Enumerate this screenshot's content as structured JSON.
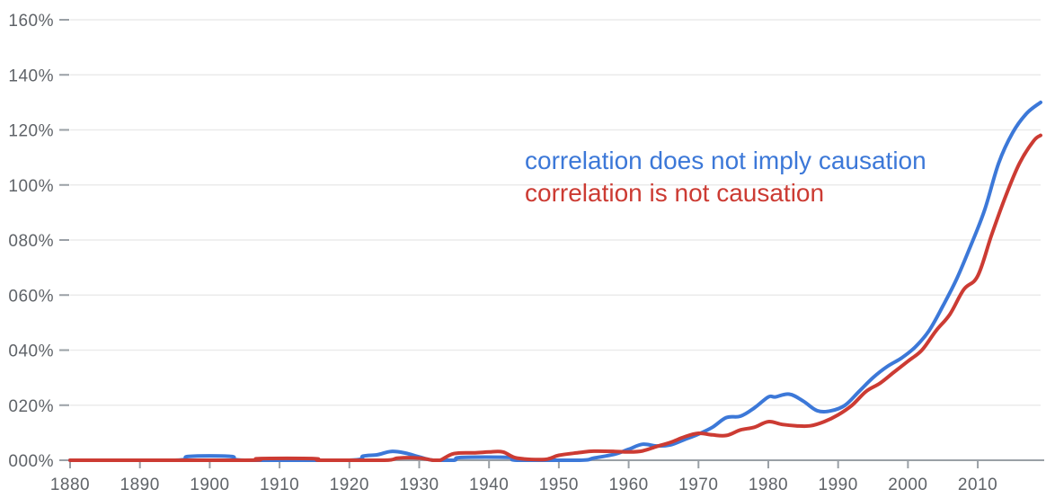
{
  "chart_data": {
    "type": "line",
    "title": "",
    "xlabel": "",
    "ylabel": "",
    "xlim": [
      1880,
      2019
    ],
    "ylim": [
      0,
      160
    ],
    "y_unit": "%",
    "grid": true,
    "legend_placement": "inside-right",
    "x_ticks": [
      1880,
      1890,
      1900,
      1910,
      1920,
      1930,
      1940,
      1950,
      1960,
      1970,
      1980,
      1990,
      2000,
      2010
    ],
    "y_tick_values": [
      0,
      20,
      40,
      60,
      80,
      100,
      120,
      140,
      160
    ],
    "y_tick_labels": [
      "000%",
      "020%",
      "040%",
      "060%",
      "080%",
      "100%",
      "120%",
      "140%",
      "160%"
    ],
    "colors": {
      "grid": "#ebebeb",
      "axis": "#9aa0a6",
      "tick_text": "#5f6368"
    },
    "series": [
      {
        "name": "correlation does not imply causation",
        "color": "#3c78d8",
        "points": [
          [
            1880,
            0
          ],
          [
            1895,
            0
          ],
          [
            1897,
            1.4
          ],
          [
            1903,
            1.4
          ],
          [
            1905,
            0
          ],
          [
            1920,
            0
          ],
          [
            1922,
            1.5
          ],
          [
            1924,
            2.0
          ],
          [
            1926,
            3.2
          ],
          [
            1928,
            2.6
          ],
          [
            1930,
            1.2
          ],
          [
            1932,
            0
          ],
          [
            1935,
            0
          ],
          [
            1936,
            1.0
          ],
          [
            1943,
            1.0
          ],
          [
            1944,
            0
          ],
          [
            1953,
            0
          ],
          [
            1955,
            0.8
          ],
          [
            1958,
            2.2
          ],
          [
            1960,
            4.0
          ],
          [
            1962,
            5.8
          ],
          [
            1964,
            5.2
          ],
          [
            1966,
            5.6
          ],
          [
            1968,
            7.5
          ],
          [
            1970,
            9.5
          ],
          [
            1972,
            12.0
          ],
          [
            1974,
            15.5
          ],
          [
            1976,
            16.0
          ],
          [
            1978,
            19.0
          ],
          [
            1980,
            23.0
          ],
          [
            1981,
            23.0
          ],
          [
            1983,
            24.0
          ],
          [
            1985,
            21.5
          ],
          [
            1987,
            18.0
          ],
          [
            1989,
            18.0
          ],
          [
            1991,
            20.0
          ],
          [
            1993,
            25.0
          ],
          [
            1995,
            30.0
          ],
          [
            1997,
            34.0
          ],
          [
            1999,
            37.0
          ],
          [
            2001,
            41.0
          ],
          [
            2003,
            47.0
          ],
          [
            2005,
            56.0
          ],
          [
            2007,
            66.0
          ],
          [
            2009,
            78.0
          ],
          [
            2011,
            91.0
          ],
          [
            2013,
            108.0
          ],
          [
            2015,
            119.0
          ],
          [
            2017,
            126.0
          ],
          [
            2019,
            130.0
          ]
        ]
      },
      {
        "name": "correlation is not causation",
        "color": "#cc3b33",
        "points": [
          [
            1880,
            0
          ],
          [
            1905,
            0
          ],
          [
            1907,
            0.6
          ],
          [
            1915,
            0.6
          ],
          [
            1916,
            0
          ],
          [
            1925,
            0
          ],
          [
            1927,
            0.8
          ],
          [
            1930,
            0.8
          ],
          [
            1932,
            0
          ],
          [
            1933,
            0
          ],
          [
            1935,
            2.4
          ],
          [
            1938,
            2.7
          ],
          [
            1940,
            3.0
          ],
          [
            1942,
            3.0
          ],
          [
            1944,
            0.8
          ],
          [
            1948,
            0.3
          ],
          [
            1950,
            1.8
          ],
          [
            1953,
            2.8
          ],
          [
            1955,
            3.3
          ],
          [
            1958,
            3.2
          ],
          [
            1960,
            3.0
          ],
          [
            1962,
            3.4
          ],
          [
            1964,
            5.0
          ],
          [
            1966,
            6.5
          ],
          [
            1968,
            8.5
          ],
          [
            1970,
            9.8
          ],
          [
            1972,
            9.2
          ],
          [
            1974,
            9.0
          ],
          [
            1976,
            11.0
          ],
          [
            1978,
            12.0
          ],
          [
            1980,
            14.0
          ],
          [
            1982,
            13.0
          ],
          [
            1984,
            12.5
          ],
          [
            1986,
            12.5
          ],
          [
            1988,
            14.0
          ],
          [
            1990,
            16.5
          ],
          [
            1992,
            20.0
          ],
          [
            1994,
            25.0
          ],
          [
            1996,
            28.0
          ],
          [
            1998,
            32.0
          ],
          [
            2000,
            36.0
          ],
          [
            2002,
            40.0
          ],
          [
            2004,
            47.0
          ],
          [
            2006,
            53.0
          ],
          [
            2008,
            62.0
          ],
          [
            2010,
            67.0
          ],
          [
            2012,
            82.0
          ],
          [
            2014,
            96.0
          ],
          [
            2016,
            108.0
          ],
          [
            2018,
            116.0
          ],
          [
            2019,
            118.0
          ]
        ]
      }
    ]
  }
}
